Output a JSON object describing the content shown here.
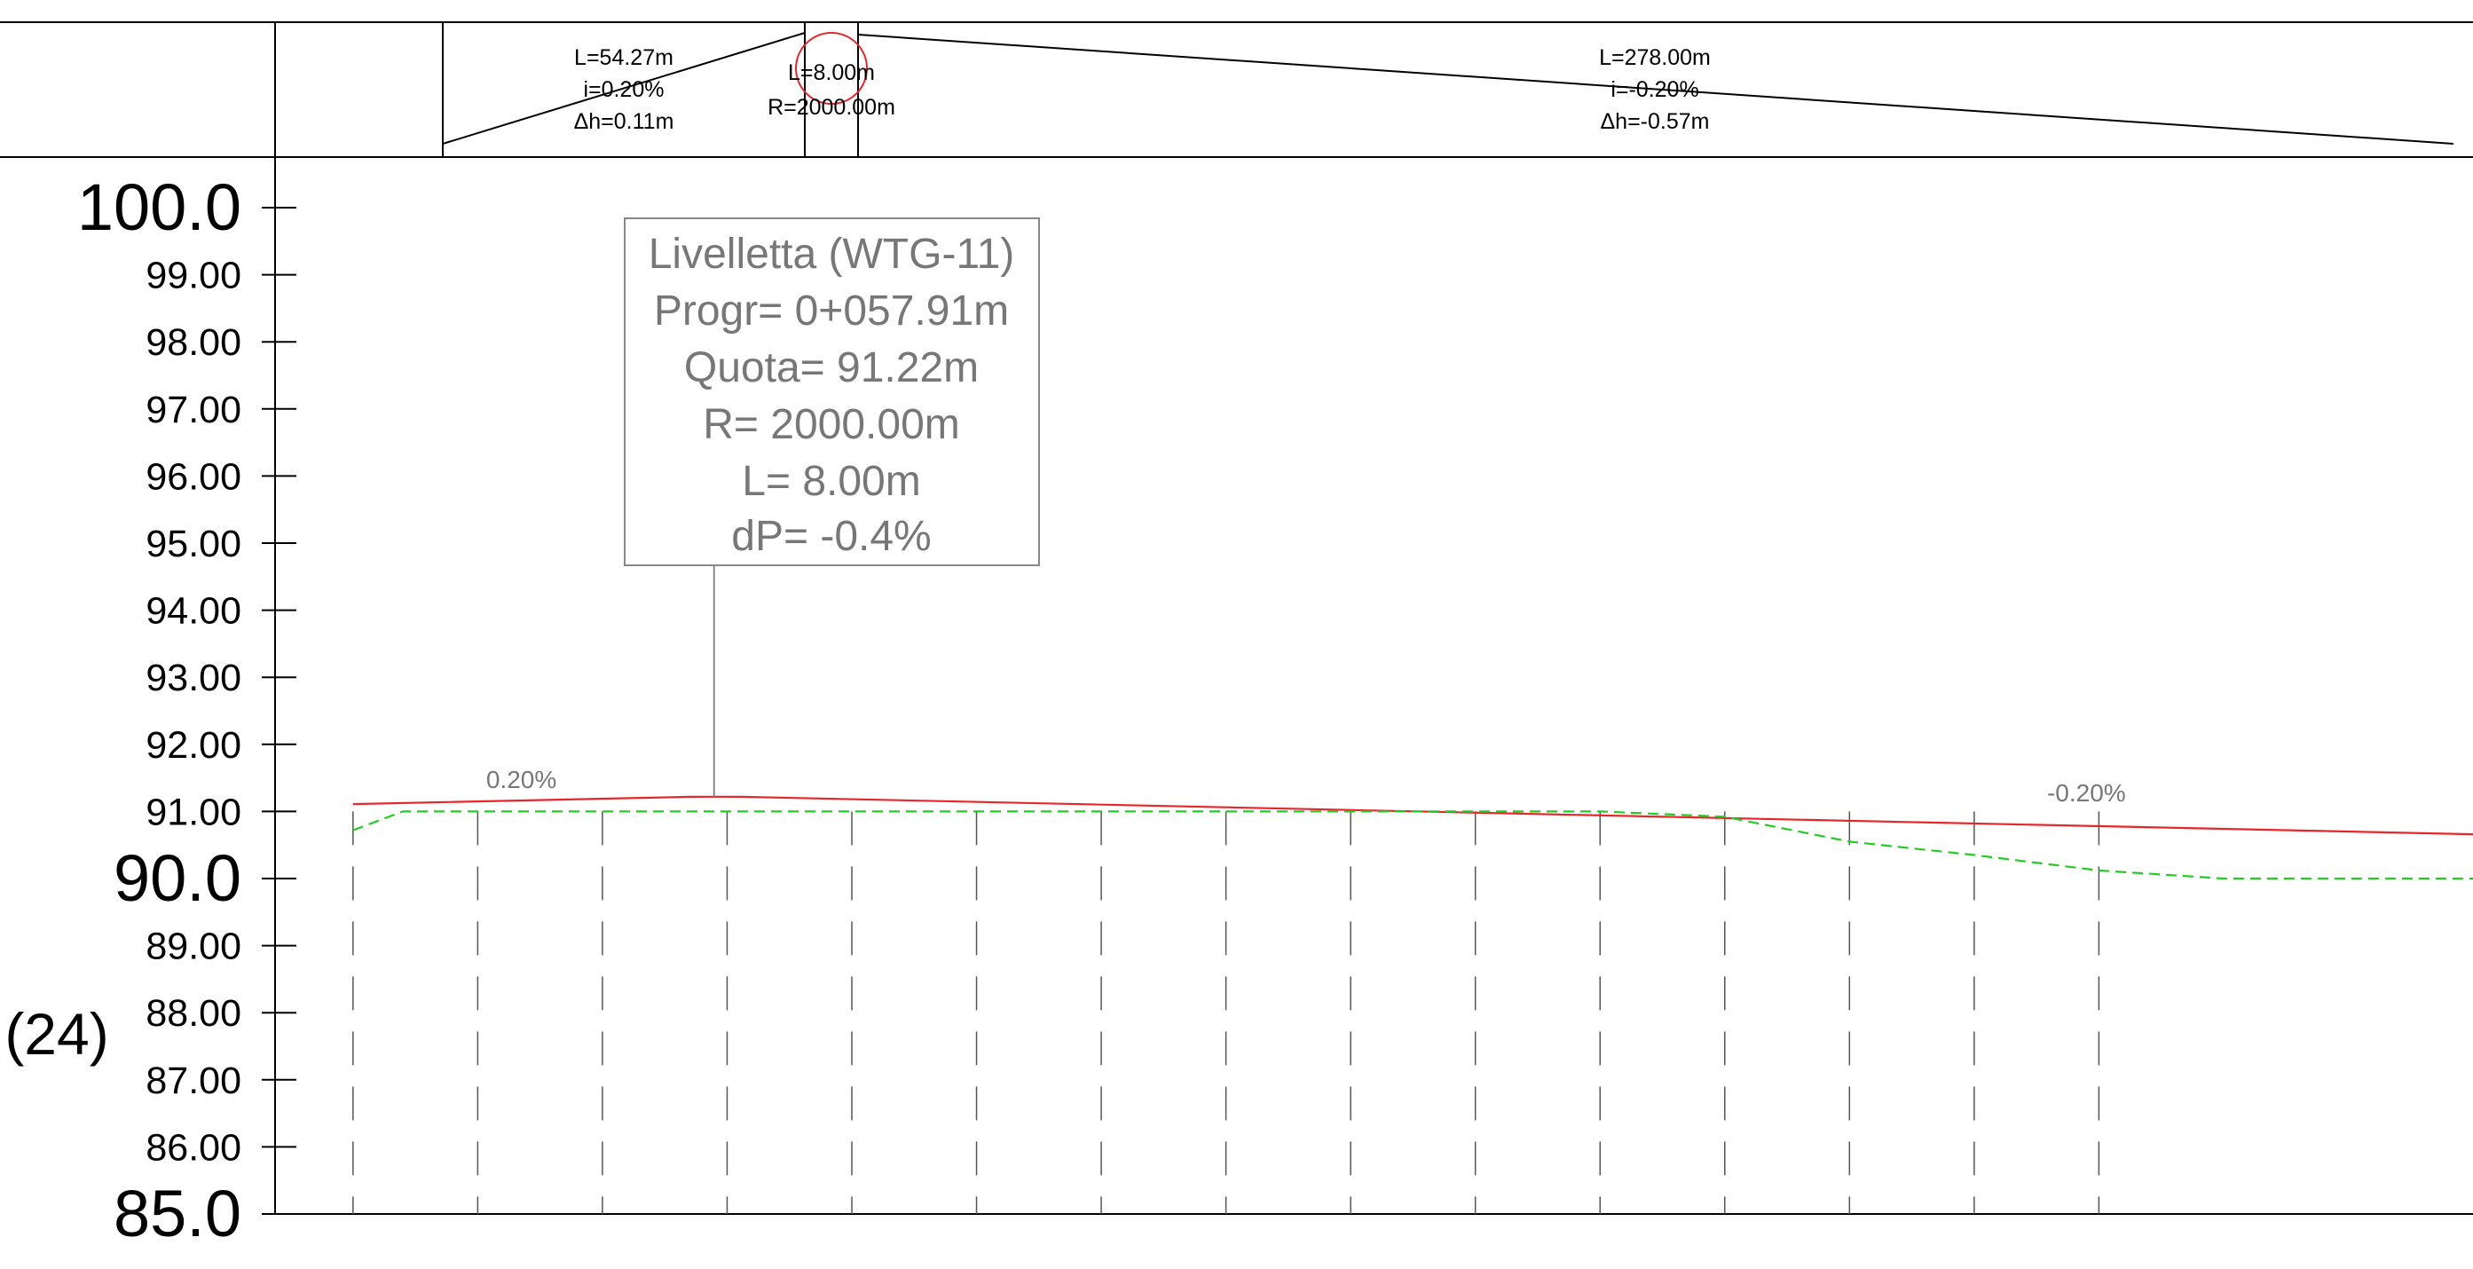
{
  "header_band": {
    "segments": [
      {
        "lines": [
          "L=54.27m",
          "i=0.20%",
          "Δh=0.11m"
        ]
      },
      {
        "lines": [
          "L=8.00m",
          "R=2000.00m"
        ]
      },
      {
        "lines": [
          "L=278.00m",
          "i=-0.20%",
          "Δh=-0.57m"
        ]
      }
    ]
  },
  "tooltip": {
    "lines": [
      "Livelletta (WTG-11)",
      "Progr= 0+057.91m",
      "Quota= 91.22m",
      "R= 2000.00m",
      "L= 8.00m",
      "dP= -0.4%"
    ]
  },
  "scale_label": "(24)",
  "chart_data": {
    "type": "line",
    "ylim": [
      85,
      100
    ],
    "xlim": [
      -12.5,
      340
    ],
    "y_tick_labels": [
      {
        "value": 100,
        "label": "100.0",
        "major": true
      },
      {
        "value": 99,
        "label": "99.00"
      },
      {
        "value": 98,
        "label": "98.00"
      },
      {
        "value": 97,
        "label": "97.00"
      },
      {
        "value": 96,
        "label": "96.00"
      },
      {
        "value": 95,
        "label": "95.00"
      },
      {
        "value": 94,
        "label": "94.00"
      },
      {
        "value": 93,
        "label": "93.00"
      },
      {
        "value": 92,
        "label": "92.00"
      },
      {
        "value": 91,
        "label": "91.00"
      },
      {
        "value": 90,
        "label": "90.0",
        "major": true
      },
      {
        "value": 89,
        "label": "89.00"
      },
      {
        "value": 88,
        "label": "88.00"
      },
      {
        "value": 87,
        "label": "87.00"
      },
      {
        "value": 86,
        "label": "86.00"
      },
      {
        "value": 85,
        "label": "85.0",
        "major": true
      }
    ],
    "series": [
      {
        "color": "#e8262a",
        "style": "solid",
        "x": [
          0,
          54.27,
          58.27,
          62.27,
          340
        ],
        "y": [
          91.11,
          91.218,
          91.22,
          91.218,
          90.66
        ]
      },
      {
        "color": "#22cc22",
        "style": "dashed",
        "x": [
          0,
          8,
          20,
          40,
          60,
          80,
          100,
          120,
          140,
          160,
          180,
          200,
          220,
          240,
          260,
          280,
          300,
          320,
          340
        ],
        "y": [
          90.72,
          91.0,
          91.0,
          91.0,
          91.0,
          91.0,
          91.0,
          91.0,
          91.0,
          91.0,
          91.0,
          91.0,
          90.92,
          90.55,
          90.35,
          90.12,
          90.0,
          90.0,
          90.0
        ]
      }
    ],
    "station_x": [
      0,
      20,
      40,
      60,
      80,
      100,
      120,
      140,
      160,
      180,
      200,
      220,
      240,
      260,
      280
    ],
    "grade_labels": [
      {
        "text": "0.20%",
        "x": 27,
        "y": 91.35
      },
      {
        "text": "-0.20%",
        "x": 278,
        "y": 91.15
      }
    ],
    "tooltip_anchor": {
      "x": 57.91,
      "y": 91.22
    }
  },
  "colors": {
    "axis": "#000000",
    "profile": "#e8262a",
    "terrain": "#22cc22",
    "tooltip_text": "#777777",
    "tooltip_border": "#888888",
    "grade_text": "#777777",
    "vertical_curve": "#e8262a"
  }
}
